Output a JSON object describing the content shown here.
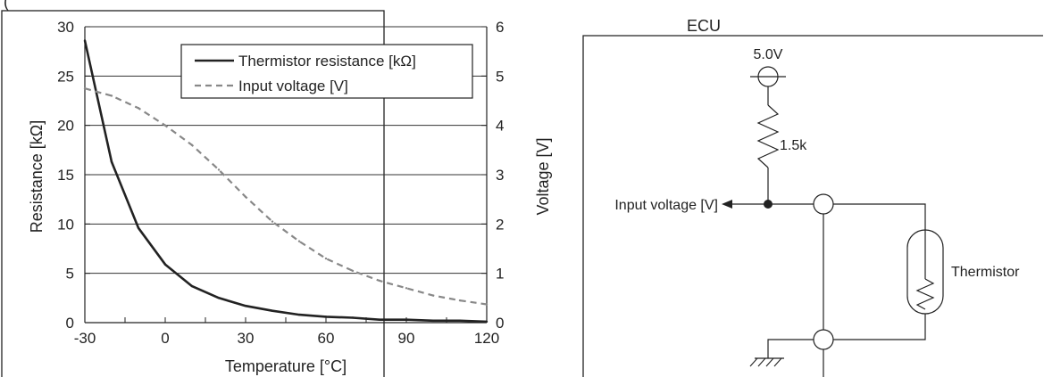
{
  "chart_data": {
    "type": "line",
    "title": "",
    "header_fragment": "(",
    "xlabel": "Temperature [°C]",
    "ylabel": "Resistance [kΩ]",
    "y2label": "Voltage [V]",
    "xlim": [
      -30,
      120
    ],
    "ylim": [
      0,
      30
    ],
    "y2lim": [
      0,
      6
    ],
    "xticks": [
      -30,
      0,
      30,
      60,
      90,
      120
    ],
    "yticks": [
      0,
      5,
      10,
      15,
      20,
      25,
      30
    ],
    "y2ticks": [
      0,
      1,
      2,
      3,
      4,
      5,
      6
    ],
    "grid": "horizontal",
    "legend_position": "top-right",
    "series": [
      {
        "name": "Thermistor resistance [kΩ]",
        "axis": "left",
        "style": "solid",
        "color": "#222222",
        "x": [
          -30,
          -20,
          -10,
          0,
          10,
          20,
          30,
          40,
          50,
          60,
          70,
          80,
          90,
          100,
          110,
          120
        ],
        "values": [
          28.6,
          16.3,
          9.6,
          5.9,
          3.7,
          2.5,
          1.7,
          1.2,
          0.8,
          0.6,
          0.5,
          0.3,
          0.3,
          0.2,
          0.2,
          0.1
        ]
      },
      {
        "name": "Input voltage [V]",
        "axis": "right",
        "style": "dashed",
        "color": "#888888",
        "x": [
          -30,
          -20,
          -10,
          0,
          10,
          20,
          30,
          40,
          50,
          60,
          70,
          80,
          90,
          100,
          110,
          120
        ],
        "values": [
          4.75,
          4.6,
          4.35,
          4.0,
          3.6,
          3.1,
          2.55,
          2.05,
          1.65,
          1.3,
          1.05,
          0.85,
          0.7,
          0.55,
          0.45,
          0.37
        ]
      }
    ]
  },
  "schematic": {
    "ecu_label": "ECU",
    "supply_label": "5.0V",
    "resistor_label": "1.5k",
    "output_label": "Input voltage [V]",
    "sensor_label": "Thermistor"
  }
}
